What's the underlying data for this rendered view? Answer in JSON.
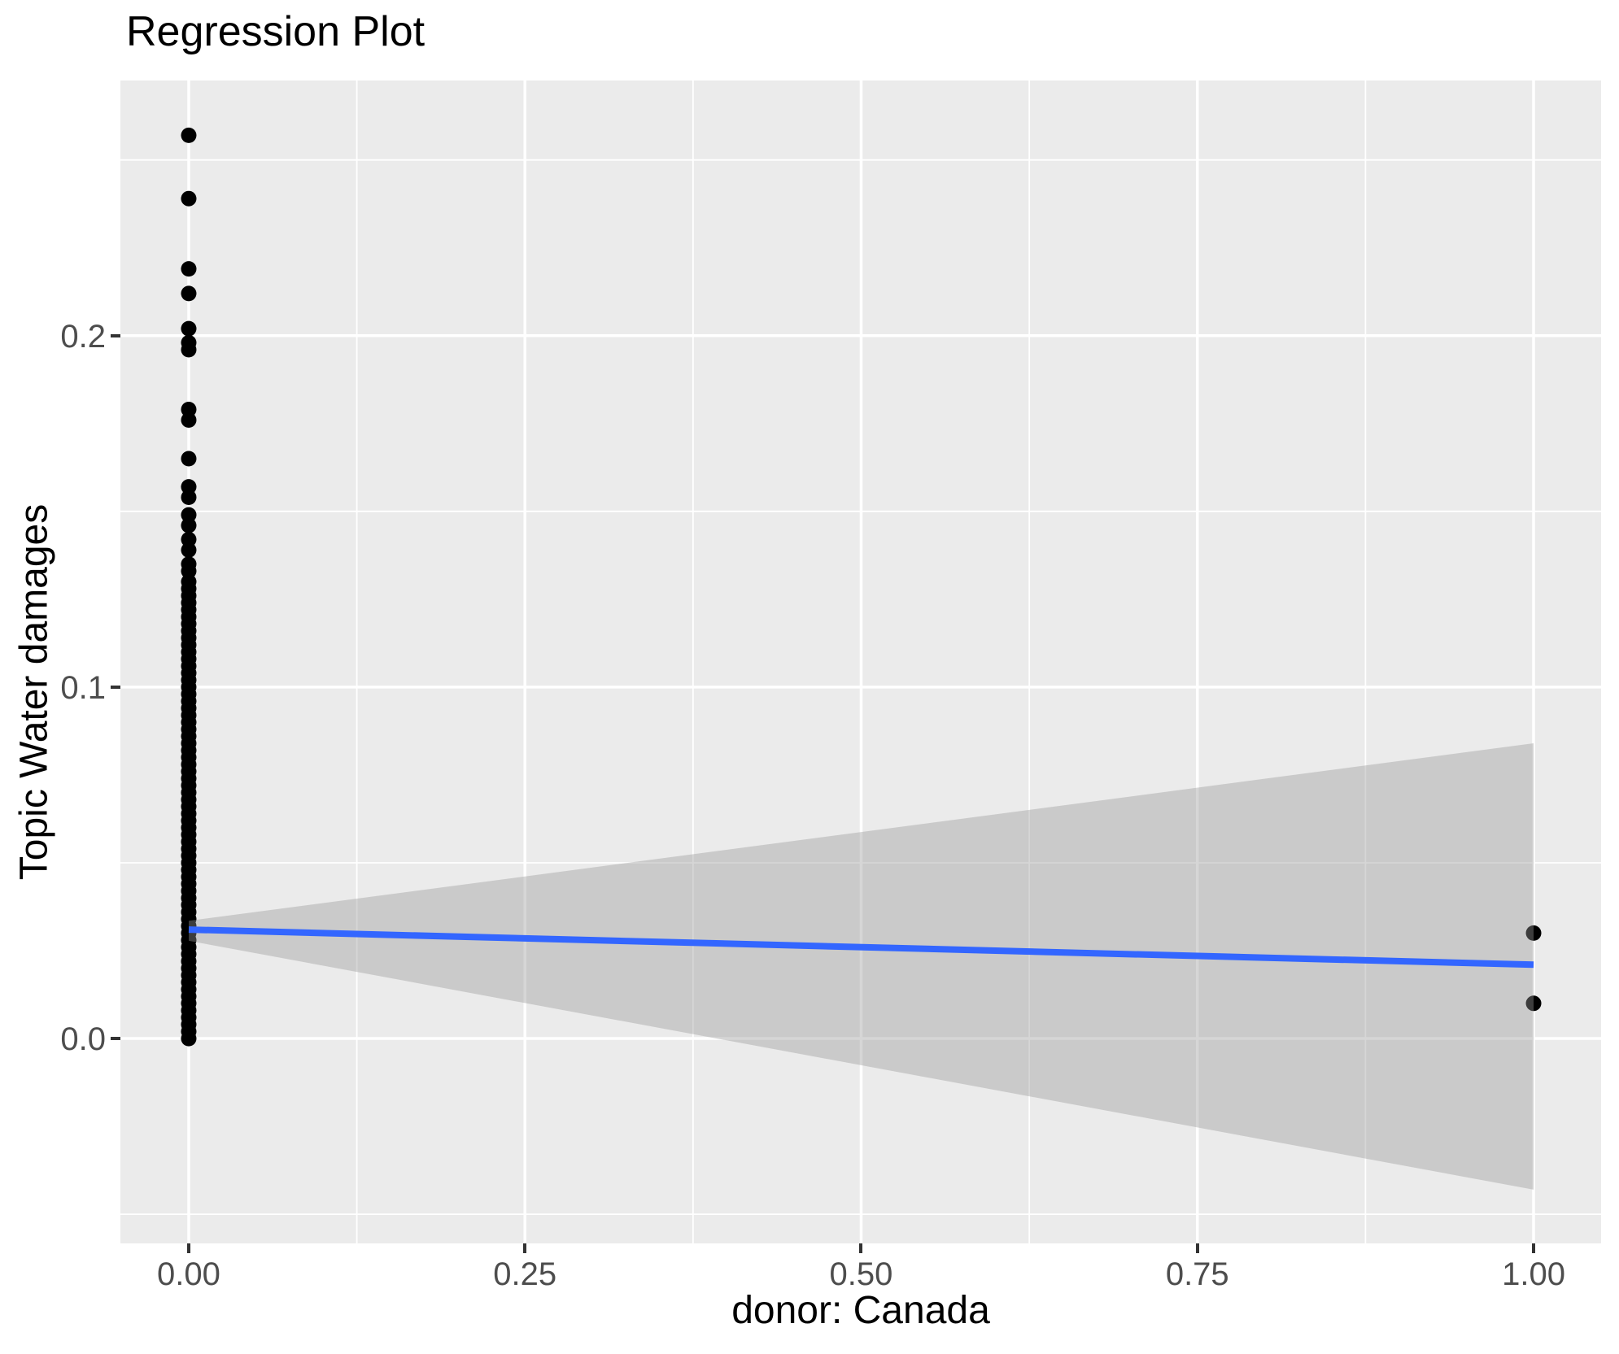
{
  "title": "Regression Plot",
  "chart_data": {
    "type": "scatter",
    "title": "Regression Plot",
    "xlabel": "donor: Canada",
    "ylabel": "Topic Water damages",
    "xlim": [
      -0.0508,
      1.0502
    ],
    "ylim": [
      -0.0583,
      0.2726
    ],
    "grid": "on",
    "legend": "none",
    "x_major_ticks": [
      0.0,
      0.25,
      0.5,
      0.75,
      1.0
    ],
    "x_tick_labels": [
      "0.00",
      "0.25",
      "0.50",
      "0.75",
      "1.00"
    ],
    "x_minor_ticks": [
      0.125,
      0.375,
      0.625,
      0.875
    ],
    "y_major_ticks": [
      0.0,
      0.1,
      0.2
    ],
    "y_tick_labels": [
      "0.0",
      "0.1",
      "0.2"
    ],
    "y_minor_ticks": [
      -0.05,
      0.05,
      0.15,
      0.25
    ],
    "series": [
      {
        "name": "observations at donor=0",
        "x": 0,
        "y_discrete": [
          0.257,
          0.239,
          0.219,
          0.212,
          0.202,
          0.198,
          0.196,
          0.179,
          0.176,
          0.165,
          0.157,
          0.154,
          0.149,
          0.146,
          0.142,
          0.139,
          0.135,
          0.133
        ],
        "y_dense": {
          "min": 0.0,
          "max": 0.13,
          "step": 0.002
        }
      },
      {
        "name": "observations at donor=1",
        "x": 1,
        "y_discrete": [
          0.03,
          0.01
        ],
        "y_dense": null
      }
    ],
    "regression_line": {
      "x": [
        0,
        1
      ],
      "y": [
        0.031,
        0.021
      ]
    },
    "confidence_band": {
      "x": [
        0,
        1
      ],
      "upper": [
        0.0335,
        0.084
      ],
      "lower": [
        0.0278,
        -0.043
      ]
    },
    "colors": {
      "panel_background": "#EBEBEB",
      "gridline": "#FFFFFF",
      "point": "#000000",
      "regression_line": "#3366FF",
      "band_fill": "#999999",
      "band_opacity": 0.4,
      "tick_label": "#4D4D4D",
      "tick_mark": "#333333",
      "text": "#000000"
    }
  }
}
